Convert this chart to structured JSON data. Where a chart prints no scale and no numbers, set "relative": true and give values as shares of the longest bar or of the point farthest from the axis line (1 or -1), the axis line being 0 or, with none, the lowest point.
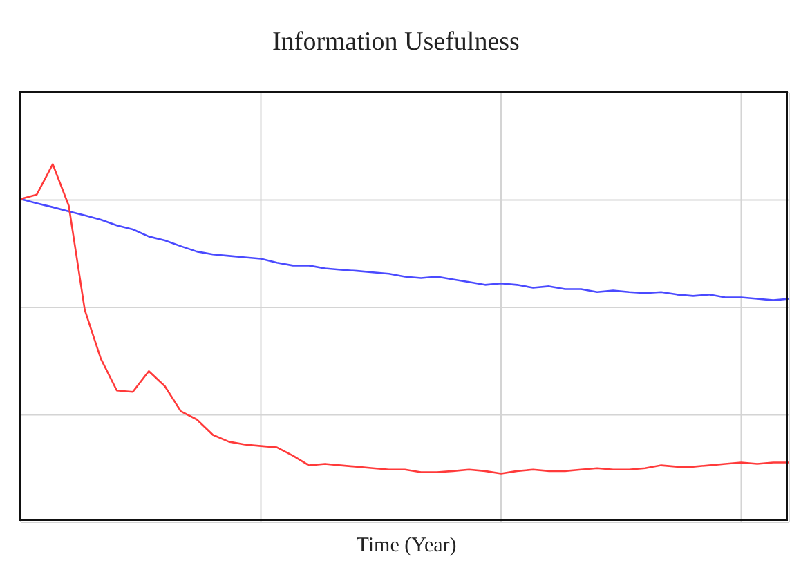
{
  "chart_data": {
    "type": "line",
    "title": "Information Usefulness",
    "xlabel": "Time (Year)",
    "relative": true,
    "grid": true,
    "categories": [
      null,
      null,
      null,
      null,
      null,
      null,
      null,
      null,
      null,
      null,
      null,
      null,
      null,
      null,
      null,
      null,
      null,
      null,
      null,
      null,
      null,
      null,
      null,
      null,
      null,
      null,
      null,
      null,
      null,
      null,
      null,
      null,
      null,
      null,
      null,
      null,
      null,
      null,
      null,
      null,
      null,
      null,
      null,
      null,
      null,
      null,
      null,
      null,
      null
    ],
    "series": [
      {
        "color": "#4a4aff",
        "values": [
          0.903,
          0.891,
          0.88,
          0.868,
          0.857,
          0.845,
          0.829,
          0.818,
          0.798,
          0.787,
          0.771,
          0.756,
          0.748,
          0.744,
          0.74,
          0.736,
          0.725,
          0.717,
          0.717,
          0.709,
          0.705,
          0.702,
          0.698,
          0.694,
          0.686,
          0.682,
          0.686,
          0.678,
          0.671,
          0.663,
          0.667,
          0.663,
          0.655,
          0.659,
          0.651,
          0.651,
          0.643,
          0.647,
          0.643,
          0.64,
          0.643,
          0.636,
          0.632,
          0.636,
          0.628,
          0.628,
          0.624,
          0.62,
          0.624
        ]
      },
      {
        "color": "#ff3a3a",
        "values": [
          0.903,
          0.915,
          1,
          0.884,
          0.593,
          0.457,
          0.368,
          0.364,
          0.422,
          0.38,
          0.31,
          0.287,
          0.244,
          0.225,
          0.217,
          0.213,
          0.209,
          0.186,
          0.159,
          0.163,
          0.159,
          0.155,
          0.151,
          0.147,
          0.147,
          0.14,
          0.14,
          0.143,
          0.147,
          0.143,
          0.136,
          0.143,
          0.147,
          0.143,
          0.143,
          0.147,
          0.151,
          0.147,
          0.147,
          0.151,
          0.159,
          0.155,
          0.155,
          0.159,
          0.163,
          0.167,
          0.163,
          0.167,
          0.167
        ]
      }
    ]
  }
}
